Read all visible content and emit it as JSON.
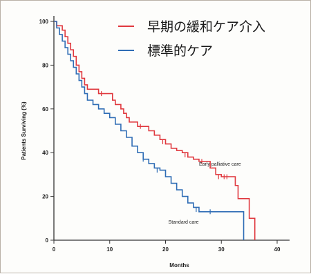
{
  "chart_data": {
    "type": "line",
    "step": true,
    "xlabel": "Months",
    "ylabel": "Patients Surviving (%)",
    "xlim": [
      0,
      40
    ],
    "ylim": [
      0,
      100
    ],
    "x_ticks": [
      "0",
      "10",
      "20",
      "30",
      "40"
    ],
    "y_ticks": [
      "0",
      "20",
      "40",
      "60",
      "80",
      "100"
    ],
    "grid": false,
    "legend_position": "top-right",
    "legend": [
      {
        "label": "早期の緩和ケア介入",
        "color": "#e0383e"
      },
      {
        "label": "標準的ケア",
        "color": "#2f6db5"
      }
    ],
    "annotations": [
      {
        "text": "Early palliative care",
        "x": 26,
        "y": 34
      },
      {
        "text": "Standard care",
        "x": 20.5,
        "y": 7.5
      }
    ],
    "series": [
      {
        "name": "早期の緩和ケア介入",
        "color": "#e0383e",
        "points": [
          [
            0,
            100
          ],
          [
            0.5,
            98
          ],
          [
            1.5,
            96
          ],
          [
            2,
            93
          ],
          [
            2.5,
            90
          ],
          [
            3,
            87
          ],
          [
            3.5,
            84
          ],
          [
            4,
            80
          ],
          [
            4.5,
            77
          ],
          [
            5,
            74
          ],
          [
            5.5,
            71
          ],
          [
            6,
            69
          ],
          [
            7.5,
            69
          ],
          [
            8,
            67
          ],
          [
            10,
            67
          ],
          [
            10.5,
            64
          ],
          [
            11,
            62
          ],
          [
            12,
            60
          ],
          [
            12.5,
            58
          ],
          [
            13,
            56
          ],
          [
            13.5,
            54
          ],
          [
            14.5,
            54
          ],
          [
            15,
            52
          ],
          [
            16.5,
            52
          ],
          [
            17,
            50
          ],
          [
            18,
            48
          ],
          [
            19,
            46
          ],
          [
            20,
            44
          ],
          [
            21,
            42
          ],
          [
            22,
            41
          ],
          [
            23,
            40
          ],
          [
            24,
            38
          ],
          [
            25,
            37
          ],
          [
            26,
            36
          ],
          [
            27.5,
            36
          ],
          [
            28,
            33
          ],
          [
            29,
            30
          ],
          [
            30,
            29
          ],
          [
            32,
            29
          ],
          [
            32.5,
            25
          ],
          [
            33,
            19
          ],
          [
            34.5,
            19
          ],
          [
            35,
            10
          ],
          [
            36,
            0
          ]
        ],
        "censor_marks": [
          [
            8.5,
            67
          ],
          [
            15.5,
            52
          ],
          [
            19.5,
            45
          ],
          [
            23.5,
            39
          ],
          [
            26.5,
            36
          ],
          [
            29.5,
            29
          ],
          [
            30.5,
            29
          ],
          [
            31,
            29
          ]
        ]
      },
      {
        "name": "標準的ケア",
        "color": "#2f6db5",
        "points": [
          [
            0,
            100
          ],
          [
            0.5,
            97
          ],
          [
            1,
            94
          ],
          [
            1.5,
            91
          ],
          [
            2,
            88
          ],
          [
            2.5,
            85
          ],
          [
            3,
            82
          ],
          [
            3.5,
            79
          ],
          [
            4,
            76
          ],
          [
            4.5,
            73
          ],
          [
            5,
            70
          ],
          [
            5.5,
            67
          ],
          [
            6,
            64
          ],
          [
            7,
            62
          ],
          [
            8,
            60
          ],
          [
            9,
            58
          ],
          [
            10,
            56
          ],
          [
            11,
            53
          ],
          [
            12,
            50
          ],
          [
            13,
            47
          ],
          [
            14,
            43
          ],
          [
            15,
            40
          ],
          [
            16,
            37
          ],
          [
            17,
            35
          ],
          [
            18,
            33
          ],
          [
            19,
            32
          ],
          [
            20,
            29
          ],
          [
            21,
            26
          ],
          [
            22,
            23
          ],
          [
            23,
            20
          ],
          [
            24,
            17
          ],
          [
            25,
            15
          ],
          [
            26,
            13
          ],
          [
            27,
            13
          ],
          [
            33.5,
            13
          ],
          [
            34,
            0
          ]
        ],
        "censor_marks": [
          [
            16,
            37
          ],
          [
            18.5,
            32
          ],
          [
            25.5,
            14
          ],
          [
            28,
            13
          ]
        ]
      }
    ]
  }
}
